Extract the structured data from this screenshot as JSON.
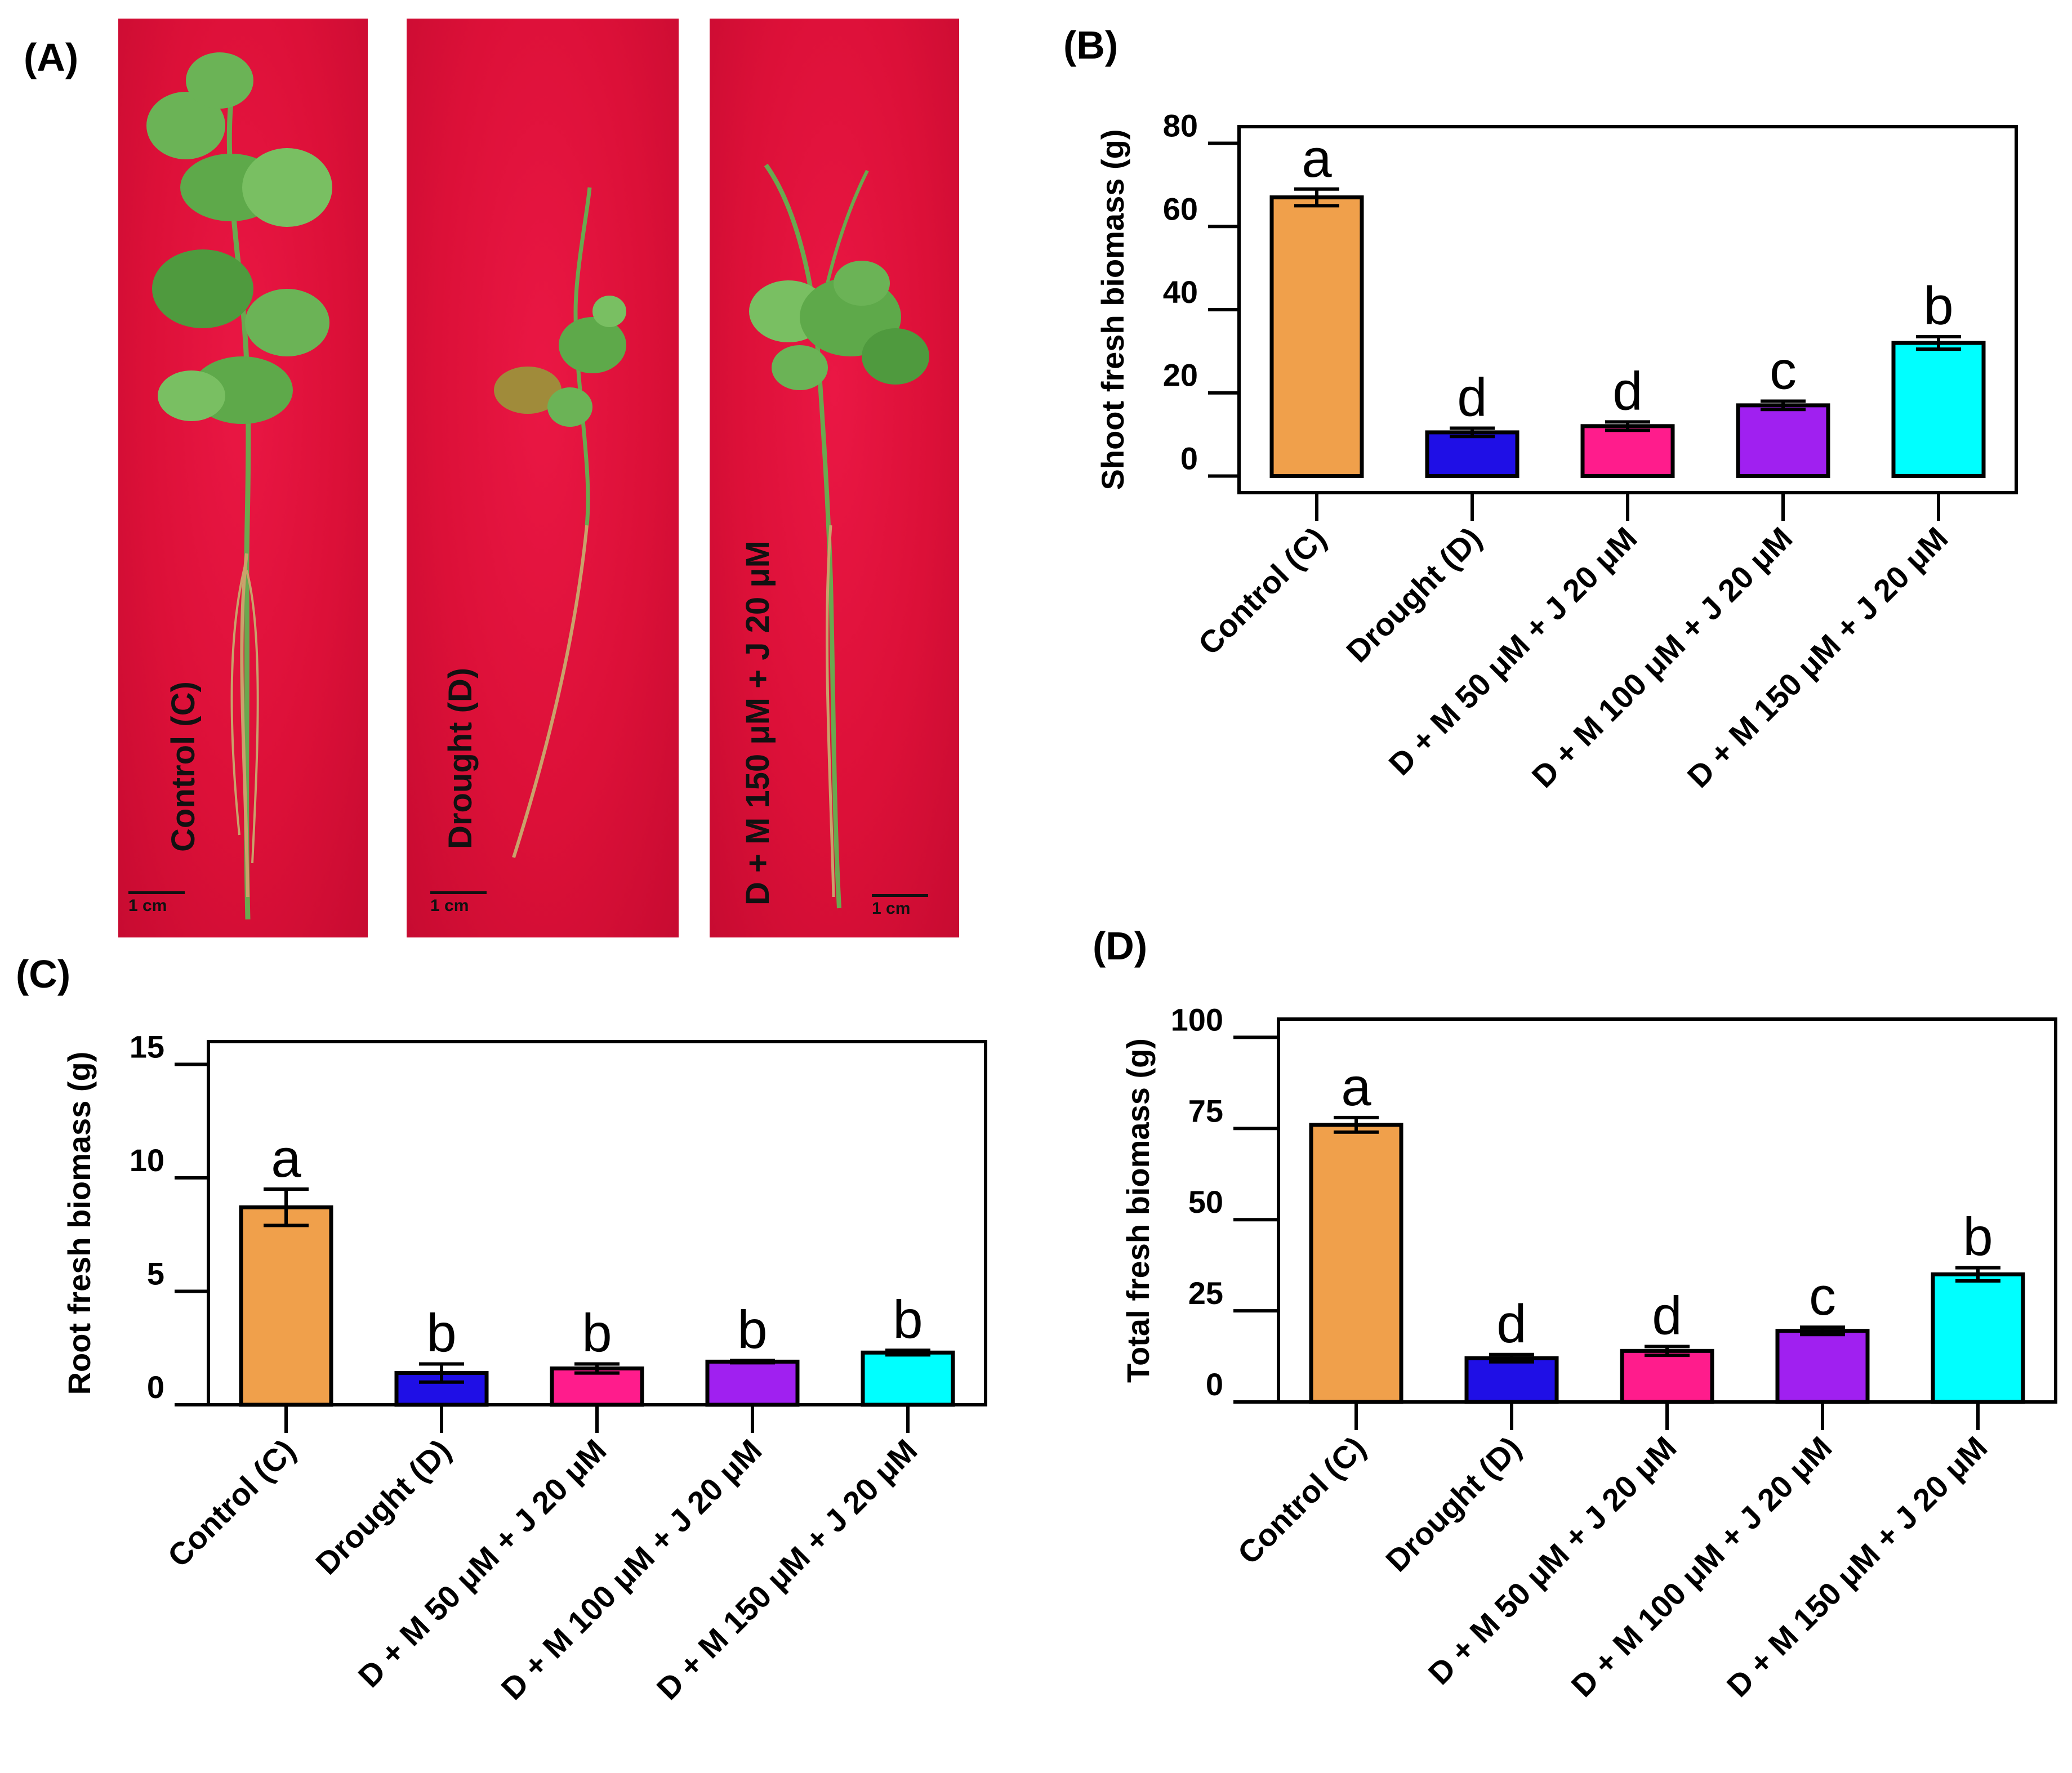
{
  "panels": {
    "A": "(A)",
    "B": "(B)",
    "C": "(C)",
    "D": "(D)"
  },
  "photos": [
    {
      "label": "Control (C)",
      "scale": "1 cm"
    },
    {
      "label": "Drought (D)",
      "scale": "1 cm"
    },
    {
      "label": "D + M 150 μM + J 20 μM",
      "scale": "1 cm"
    }
  ],
  "colors": {
    "control": "#f0a04b",
    "drought": "#1f0fe6",
    "m50": "#ff1c8c",
    "m100": "#a020f0",
    "m150": "#00ffff",
    "photo_bg": "#e0123e"
  },
  "chart_data": [
    {
      "id": "B",
      "type": "bar",
      "title": "",
      "xlabel": "",
      "ylabel": "Shoot fresh biomass (g)",
      "categories": [
        "Control (C)",
        "Drought (D)",
        "D + M 50 μM + J 20 μM",
        "D + M 100 μM + J 20 μM",
        "D + M 150 μM + J 20 μM"
      ],
      "values": [
        67,
        10.5,
        12,
        17,
        32
      ],
      "errors": [
        2,
        1,
        1,
        1,
        1.5
      ],
      "letters": [
        "a",
        "d",
        "d",
        "c",
        "b"
      ],
      "ylim": [
        -4,
        84
      ],
      "ticks": [
        0,
        20,
        40,
        60,
        80
      ],
      "tick_labels": [
        "0",
        "20",
        "40",
        "60",
        "80"
      ]
    },
    {
      "id": "C",
      "type": "bar",
      "title": "",
      "xlabel": "",
      "ylabel": "Root fresh biomass (g)",
      "categories": [
        "Control (C)",
        "Drought (D)",
        "D + M 50 μM + J 20 μM",
        "D + M 100 μM + J 20 μM",
        "D + M 150 μM + J 20 μM"
      ],
      "values": [
        8.7,
        1.4,
        1.6,
        1.9,
        2.3
      ],
      "errors": [
        0.8,
        0.4,
        0.2,
        0.05,
        0.1
      ],
      "letters": [
        "a",
        "b",
        "b",
        "b",
        "b"
      ],
      "ylim": [
        0,
        16
      ],
      "ticks": [
        0,
        5,
        10,
        15
      ],
      "tick_labels": [
        "0",
        "5",
        "10",
        "15"
      ]
    },
    {
      "id": "D",
      "type": "bar",
      "title": "",
      "xlabel": "",
      "ylabel": "Total fresh biomass (g)",
      "categories": [
        "Control (C)",
        "Drought (D)",
        "D + M 50 μM + J 20 μM",
        "D + M 100 μM + J 20 μM",
        "D + M 150 μM + J 20 μM"
      ],
      "values": [
        76,
        12,
        14,
        19.5,
        35
      ],
      "errors": [
        2,
        1,
        1.2,
        1,
        1.8
      ],
      "letters": [
        "a",
        "d",
        "d",
        "c",
        "b"
      ],
      "ylim": [
        0,
        105
      ],
      "ticks": [
        0,
        25,
        50,
        75,
        100
      ],
      "tick_labels": [
        "0",
        "25",
        "50",
        "75",
        "100"
      ]
    }
  ]
}
